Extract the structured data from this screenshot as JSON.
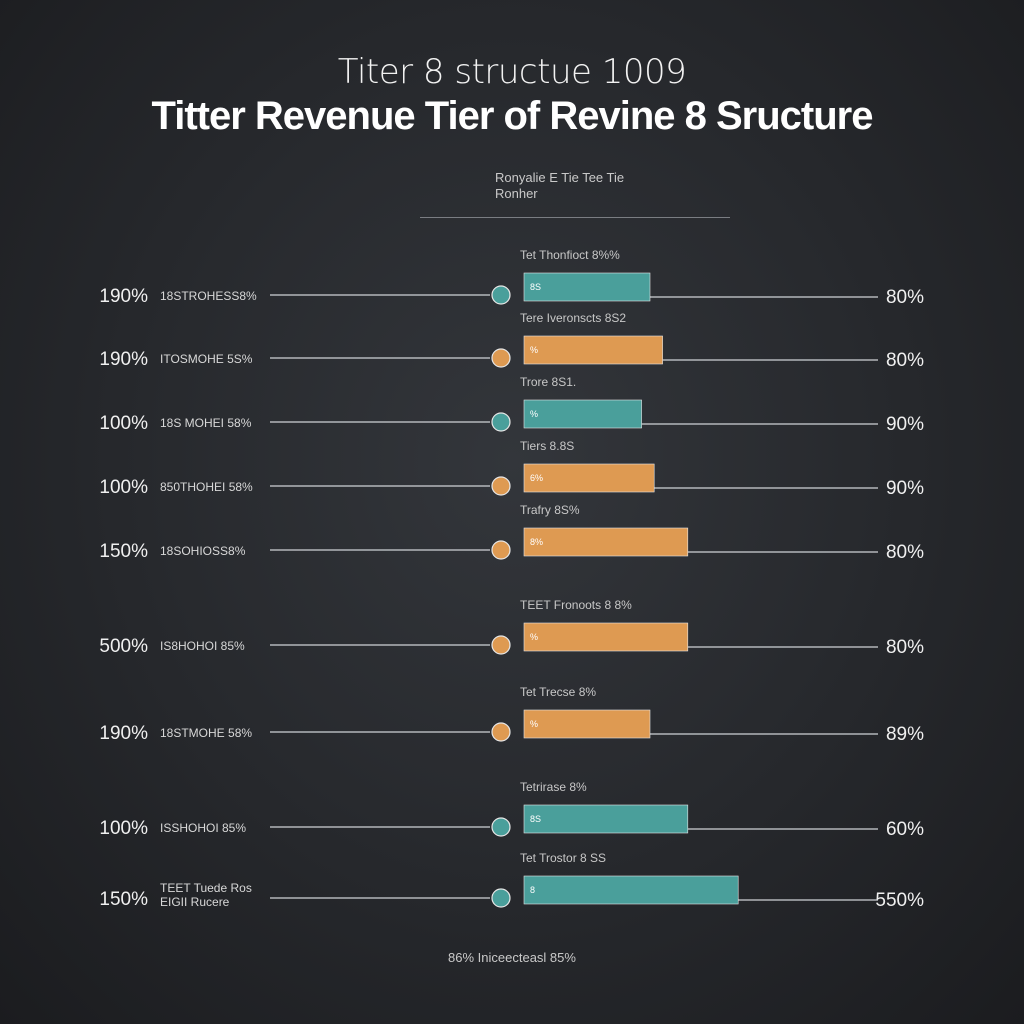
{
  "chart_data": {
    "type": "bar",
    "title": "Titter Revenue Tier of Revine 8 Sructure",
    "subtitle": "Titer 8 structue 1009",
    "header": [
      "Ronyalie E Tie Tee Tie",
      "Ronher"
    ],
    "footer_note": "86% Iniceecteasl 85%",
    "colors": {
      "teal": "#4a9f9b",
      "orange": "#de9a52",
      "line": "#cfd2d6",
      "background": "#2b2d31"
    },
    "rows": [
      {
        "left_value": "190%",
        "left_label": "18STROHESS8%",
        "tier_label": "Tet Thonfioct 8%%",
        "bar_label": "8S",
        "right_value": "80%",
        "color": "teal",
        "bar_value": 30
      },
      {
        "left_value": "190%",
        "left_label": "ITOSMOHE 5S%",
        "tier_label": "Tere Iveronscts 8S2",
        "bar_label": "%",
        "right_value": "80%",
        "color": "orange",
        "bar_value": 33
      },
      {
        "left_value": "100%",
        "left_label": "18S MOHEI 58%",
        "tier_label": "Trore 8S1.",
        "bar_label": "%",
        "right_value": "90%",
        "color": "teal",
        "bar_value": 28
      },
      {
        "left_value": "100%",
        "left_label": "850THOHEI 58%",
        "tier_label": "Tiers 8.8S",
        "bar_label": "6%",
        "right_value": "90%",
        "color": "orange",
        "bar_value": 31
      },
      {
        "left_value": "150%",
        "left_label": "18SOHIOSS8%",
        "tier_label": "Trafry 8S%",
        "bar_label": "8%",
        "right_value": "80%",
        "color": "orange",
        "bar_value": 39
      },
      {
        "left_value": "500%",
        "left_label": "IS8HOHOI 85%",
        "tier_label": "TEET Fronoots 8 8%",
        "bar_label": "%",
        "right_value": "80%",
        "color": "orange",
        "bar_value": 39
      },
      {
        "left_value": "190%",
        "left_label": "18STMOHE 58%",
        "tier_label": "Tet Trecse 8%",
        "bar_label": "%",
        "right_value": "89%",
        "color": "orange",
        "bar_value": 30
      },
      {
        "left_value": "100%",
        "left_label": "ISSHOHOI 85%",
        "tier_label": "Tetrirase 8%",
        "bar_label": "8S",
        "right_value": "60%",
        "color": "teal",
        "bar_value": 39
      },
      {
        "left_value": "150%",
        "left_label": [
          "TEET Tuede Ros",
          "EIGII Rucere"
        ],
        "tier_label": "Tet Trostor 8 SS",
        "bar_label": "8",
        "right_value": "550%",
        "color": "teal",
        "bar_value": 51
      }
    ]
  }
}
